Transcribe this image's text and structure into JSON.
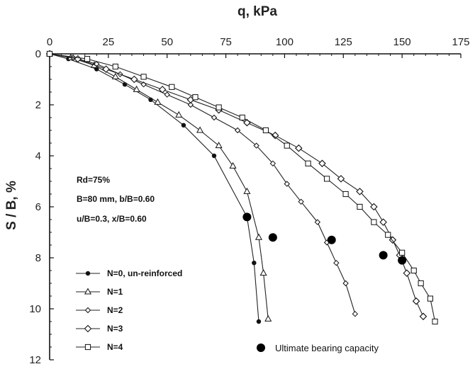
{
  "chart_data": {
    "type": "line",
    "xlabel": "q, kPa",
    "ylabel": "S / B, %",
    "xlim": [
      0,
      175
    ],
    "ylim": [
      12,
      0
    ],
    "x_ticks": [
      0,
      25,
      50,
      75,
      100,
      125,
      150,
      175
    ],
    "y_ticks": [
      0,
      2,
      4,
      6,
      8,
      10,
      12
    ],
    "x_axis_position": "top",
    "y_axis_inverted": true,
    "grid": false,
    "legend_position": "bottom-left",
    "annotation": [
      "Rd=75%",
      "B=80 mm, b/B=0.60",
      "u/B=0.3, x/B=0.60"
    ],
    "series": [
      {
        "name": "N=0, un-reinforced",
        "marker": "filled-circle",
        "points": [
          [
            0,
            0
          ],
          [
            8,
            0.2
          ],
          [
            20,
            0.6
          ],
          [
            32,
            1.2
          ],
          [
            43,
            1.8
          ],
          [
            57,
            2.8
          ],
          [
            70,
            4.0
          ],
          [
            84,
            6.4
          ],
          [
            87,
            8.2
          ],
          [
            89,
            10.5
          ]
        ]
      },
      {
        "name": "N=1",
        "marker": "open-triangle",
        "points": [
          [
            0,
            0
          ],
          [
            9,
            0.15
          ],
          [
            19,
            0.45
          ],
          [
            28,
            0.9
          ],
          [
            37,
            1.4
          ],
          [
            46,
            1.9
          ],
          [
            55,
            2.4
          ],
          [
            64,
            3.0
          ],
          [
            72,
            3.6
          ],
          [
            78,
            4.4
          ],
          [
            84,
            5.4
          ],
          [
            89,
            7.2
          ],
          [
            91,
            8.6
          ],
          [
            93,
            10.4
          ]
        ]
      },
      {
        "name": "N=2",
        "marker": "open-diamond-small",
        "points": [
          [
            0,
            0
          ],
          [
            10,
            0.15
          ],
          [
            20,
            0.4
          ],
          [
            30,
            0.8
          ],
          [
            40,
            1.2
          ],
          [
            50,
            1.6
          ],
          [
            60,
            2.0
          ],
          [
            70,
            2.5
          ],
          [
            80,
            3.0
          ],
          [
            88,
            3.6
          ],
          [
            95,
            4.3
          ],
          [
            101,
            5.1
          ],
          [
            107,
            5.8
          ],
          [
            114,
            6.6
          ],
          [
            118,
            7.4
          ],
          [
            122,
            8.2
          ],
          [
            126,
            9.0
          ],
          [
            130,
            10.2
          ]
        ]
      },
      {
        "name": "N=3",
        "marker": "open-diamond",
        "points": [
          [
            0,
            0
          ],
          [
            12,
            0.2
          ],
          [
            24,
            0.6
          ],
          [
            36,
            1.0
          ],
          [
            48,
            1.4
          ],
          [
            60,
            1.8
          ],
          [
            72,
            2.2
          ],
          [
            84,
            2.7
          ],
          [
            96,
            3.2
          ],
          [
            106,
            3.7
          ],
          [
            116,
            4.3
          ],
          [
            124,
            4.9
          ],
          [
            132,
            5.4
          ],
          [
            138,
            6.0
          ],
          [
            142,
            6.6
          ],
          [
            146,
            7.3
          ],
          [
            149,
            7.9
          ],
          [
            152,
            8.6
          ],
          [
            156,
            9.7
          ],
          [
            159,
            10.3
          ]
        ]
      },
      {
        "name": "N=4",
        "marker": "open-square",
        "points": [
          [
            0,
            0
          ],
          [
            16,
            0.2
          ],
          [
            28,
            0.5
          ],
          [
            40,
            0.9
          ],
          [
            52,
            1.3
          ],
          [
            62,
            1.7
          ],
          [
            72,
            2.1
          ],
          [
            82,
            2.5
          ],
          [
            92,
            3.0
          ],
          [
            101,
            3.6
          ],
          [
            110,
            4.3
          ],
          [
            118,
            4.9
          ],
          [
            126,
            5.5
          ],
          [
            132,
            6.0
          ],
          [
            138,
            6.6
          ],
          [
            144,
            7.1
          ],
          [
            150,
            7.8
          ],
          [
            155,
            8.5
          ],
          [
            158,
            9.0
          ],
          [
            162,
            9.6
          ],
          [
            164,
            10.5
          ]
        ]
      }
    ],
    "ultimate_bearing_capacity": {
      "label": "Ultimate bearing capacity",
      "points": [
        [
          84,
          6.4
        ],
        [
          95,
          7.2
        ],
        [
          120,
          7.3
        ],
        [
          142,
          7.9
        ],
        [
          150,
          8.1
        ]
      ]
    }
  }
}
